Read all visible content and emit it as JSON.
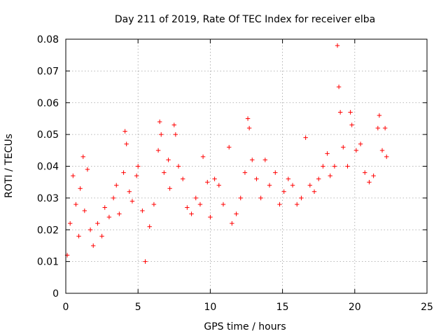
{
  "chart_data": {
    "type": "scatter",
    "title": "Day 211 of 2019, Rate Of TEC Index for receiver elba",
    "xlabel": "GPS time / hours",
    "ylabel": "ROTI / TECUs",
    "xlim": [
      0,
      25
    ],
    "ylim": [
      0,
      0.08
    ],
    "xticks": [
      0,
      5,
      10,
      15,
      20,
      25
    ],
    "xtick_labels": [
      "0",
      "5",
      "10",
      "15",
      "20",
      "25"
    ],
    "yticks": [
      0,
      0.01,
      0.02,
      0.03,
      0.04,
      0.05,
      0.06,
      0.07,
      0.08
    ],
    "ytick_labels": [
      "0",
      "0.01",
      "0.02",
      "0.03",
      "0.04",
      "0.05",
      "0.06",
      "0.07",
      "0.08"
    ],
    "grid": true,
    "marker": "+",
    "color": "#ff0000",
    "series": [
      {
        "name": "ROTI",
        "points": [
          [
            0.1,
            0.012
          ],
          [
            0.3,
            0.022
          ],
          [
            0.5,
            0.037
          ],
          [
            0.7,
            0.028
          ],
          [
            0.9,
            0.018
          ],
          [
            1.0,
            0.033
          ],
          [
            1.2,
            0.043
          ],
          [
            1.3,
            0.026
          ],
          [
            1.5,
            0.039
          ],
          [
            1.7,
            0.02
          ],
          [
            1.9,
            0.015
          ],
          [
            2.2,
            0.022
          ],
          [
            2.5,
            0.018
          ],
          [
            2.7,
            0.027
          ],
          [
            3.0,
            0.024
          ],
          [
            3.3,
            0.03
          ],
          [
            3.5,
            0.034
          ],
          [
            3.7,
            0.025
          ],
          [
            4.0,
            0.038
          ],
          [
            4.1,
            0.051
          ],
          [
            4.2,
            0.047
          ],
          [
            4.4,
            0.032
          ],
          [
            4.6,
            0.029
          ],
          [
            4.9,
            0.037
          ],
          [
            5.0,
            0.04
          ],
          [
            5.3,
            0.026
          ],
          [
            5.5,
            0.01
          ],
          [
            5.8,
            0.021
          ],
          [
            6.1,
            0.028
          ],
          [
            6.4,
            0.045
          ],
          [
            6.5,
            0.054
          ],
          [
            6.6,
            0.05
          ],
          [
            6.8,
            0.038
          ],
          [
            7.1,
            0.042
          ],
          [
            7.2,
            0.033
          ],
          [
            7.5,
            0.053
          ],
          [
            7.6,
            0.05
          ],
          [
            7.8,
            0.04
          ],
          [
            8.1,
            0.036
          ],
          [
            8.4,
            0.027
          ],
          [
            8.7,
            0.025
          ],
          [
            9.0,
            0.03
          ],
          [
            9.3,
            0.028
          ],
          [
            9.5,
            0.043
          ],
          [
            9.8,
            0.035
          ],
          [
            10.0,
            0.024
          ],
          [
            10.3,
            0.036
          ],
          [
            10.6,
            0.034
          ],
          [
            10.9,
            0.028
          ],
          [
            11.3,
            0.046
          ],
          [
            11.5,
            0.022
          ],
          [
            11.8,
            0.025
          ],
          [
            12.1,
            0.03
          ],
          [
            12.4,
            0.038
          ],
          [
            12.6,
            0.055
          ],
          [
            12.7,
            0.052
          ],
          [
            12.9,
            0.042
          ],
          [
            13.2,
            0.036
          ],
          [
            13.5,
            0.03
          ],
          [
            13.8,
            0.042
          ],
          [
            14.1,
            0.034
          ],
          [
            14.5,
            0.038
          ],
          [
            14.8,
            0.028
          ],
          [
            15.1,
            0.032
          ],
          [
            15.4,
            0.036
          ],
          [
            15.7,
            0.034
          ],
          [
            16.0,
            0.028
          ],
          [
            16.3,
            0.03
          ],
          [
            16.6,
            0.049
          ],
          [
            16.9,
            0.034
          ],
          [
            17.2,
            0.032
          ],
          [
            17.5,
            0.036
          ],
          [
            17.8,
            0.04
          ],
          [
            18.1,
            0.044
          ],
          [
            18.3,
            0.037
          ],
          [
            18.6,
            0.04
          ],
          [
            18.8,
            0.078
          ],
          [
            18.9,
            0.065
          ],
          [
            19.0,
            0.057
          ],
          [
            19.2,
            0.046
          ],
          [
            19.5,
            0.04
          ],
          [
            19.7,
            0.057
          ],
          [
            19.8,
            0.053
          ],
          [
            20.1,
            0.045
          ],
          [
            20.4,
            0.047
          ],
          [
            20.7,
            0.038
          ],
          [
            21.0,
            0.035
          ],
          [
            21.3,
            0.037
          ],
          [
            21.6,
            0.052
          ],
          [
            21.7,
            0.056
          ],
          [
            21.9,
            0.045
          ],
          [
            22.1,
            0.052
          ],
          [
            22.2,
            0.043
          ]
        ]
      }
    ]
  }
}
